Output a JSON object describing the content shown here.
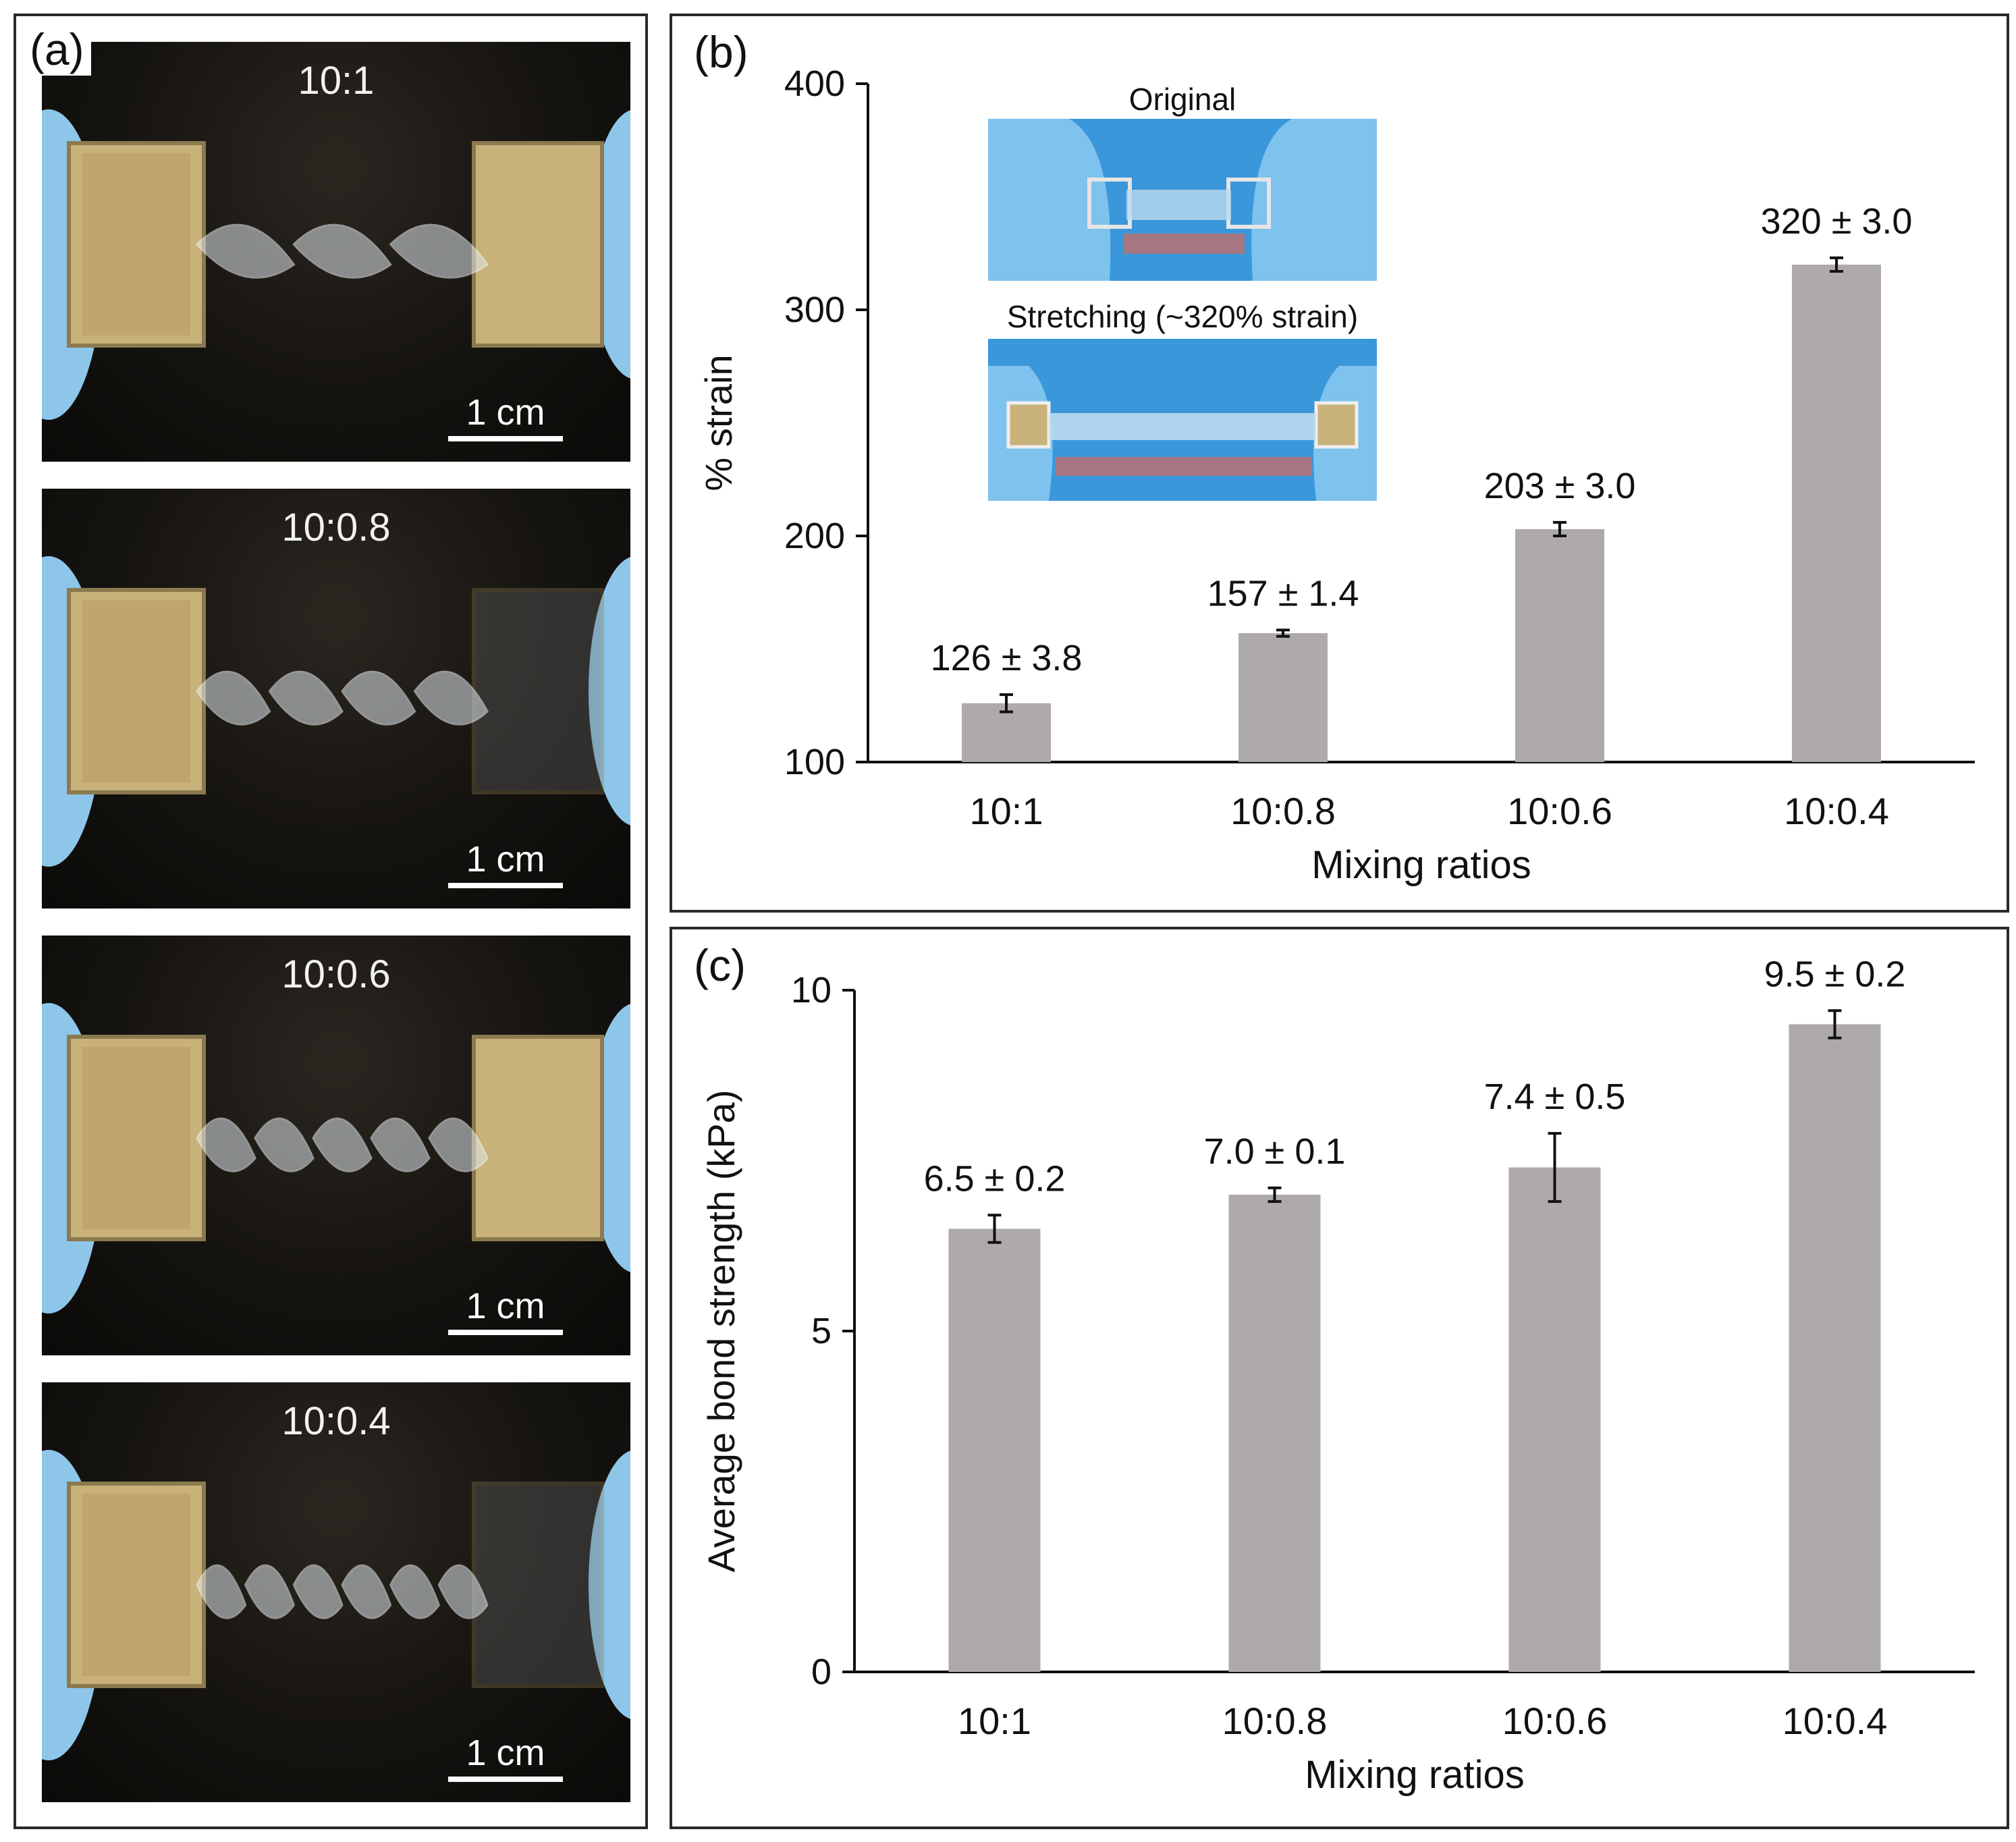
{
  "panel_a": {
    "letter": "(a)",
    "photos": [
      {
        "label": "10:1",
        "scale": "1 cm"
      },
      {
        "label": "10:0.8",
        "scale": "1 cm"
      },
      {
        "label": "10:0.6",
        "scale": "1 cm"
      },
      {
        "label": "10:0.4",
        "scale": "1 cm"
      }
    ]
  },
  "panel_b": {
    "letter": "(b)",
    "inset_top_label": "Original",
    "inset_bottom_label": "Stretching (~320% strain)"
  },
  "panel_c": {
    "letter": "(c)"
  },
  "colors": {
    "bar": "#aeaaaa",
    "axis": "#111111",
    "glove": "#8ec6ea",
    "clip": "#c9b27a"
  },
  "chart_data": [
    {
      "type": "bar",
      "categories": [
        "10:1",
        "10:0.8",
        "10:0.6",
        "10:0.4"
      ],
      "values": [
        126,
        157,
        203,
        320
      ],
      "errors": [
        3.8,
        1.4,
        3.0,
        3.0
      ],
      "data_labels": [
        "126 ± 3.8",
        "157 ± 1.4",
        "203 ± 3.0",
        "320 ± 3.0"
      ],
      "xlabel": "Mixing ratios",
      "ylabel": "% strain",
      "ylim": [
        100,
        400
      ],
      "yticks": [
        100,
        200,
        300,
        400
      ],
      "grid": false
    },
    {
      "type": "bar",
      "categories": [
        "10:1",
        "10:0.8",
        "10:0.6",
        "10:0.4"
      ],
      "values": [
        6.5,
        7.0,
        7.4,
        9.5
      ],
      "errors": [
        0.2,
        0.1,
        0.5,
        0.2
      ],
      "data_labels": [
        "6.5 ± 0.2",
        "7.0 ± 0.1",
        "7.4 ± 0.5",
        "9.5 ± 0.2"
      ],
      "xlabel": "Mixing ratios",
      "ylabel": "Average bond strength (kPa)",
      "ylim": [
        0,
        10
      ],
      "yticks": [
        0,
        5,
        10
      ],
      "grid": false
    }
  ]
}
